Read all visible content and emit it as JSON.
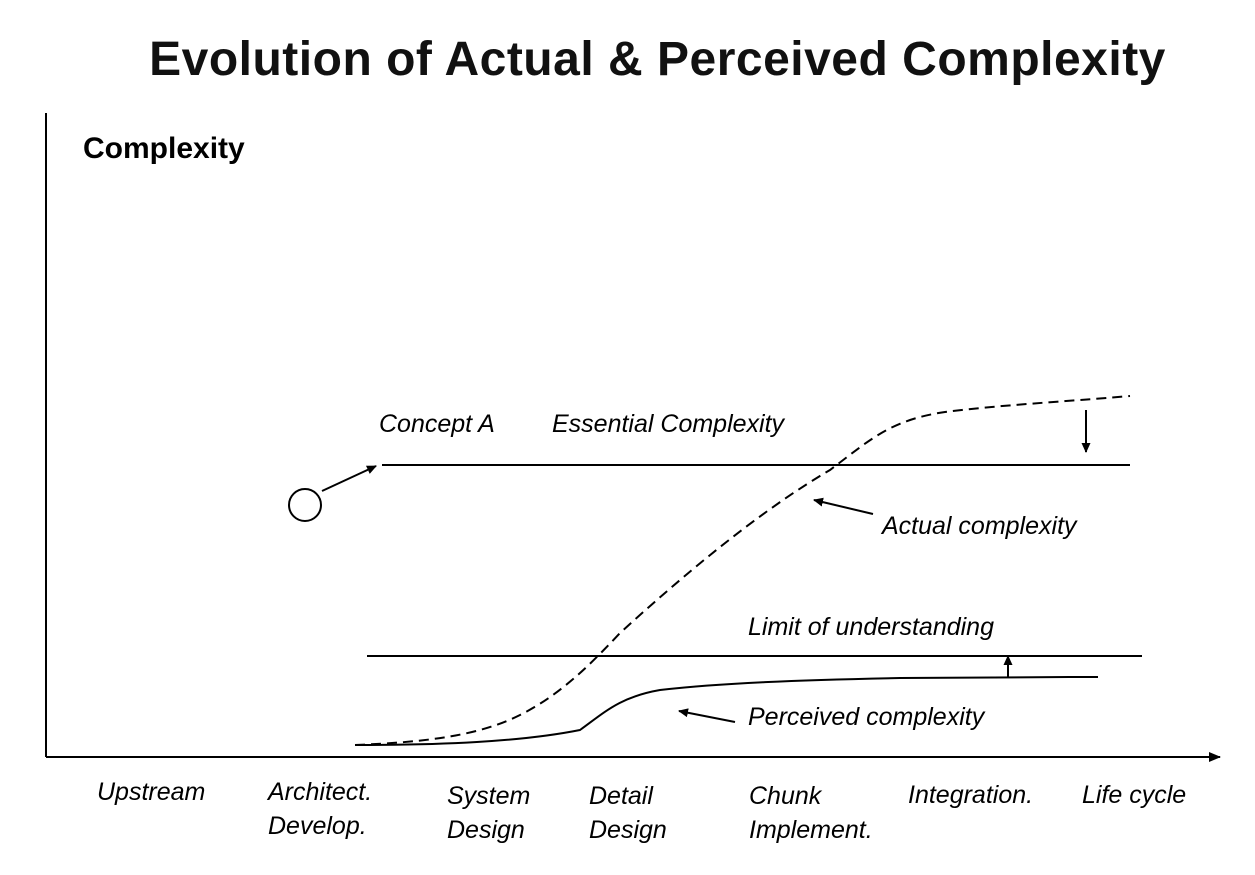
{
  "title": "Evolution of Actual & Perceived Complexity",
  "y_axis_label": "Complexity",
  "annotations": {
    "concept": "Concept A",
    "essential": "Essential Complexity",
    "actual": "Actual complexity",
    "limit": "Limit of understanding",
    "perceived": "Perceived complexity"
  },
  "stages": [
    {
      "line1": "Upstream",
      "line2": ""
    },
    {
      "line1": "Architect.",
      "line2": "Develop."
    },
    {
      "line1": "System",
      "line2": "Design"
    },
    {
      "line1": "Detail",
      "line2": "Design"
    },
    {
      "line1": "Chunk",
      "line2": "Implement."
    },
    {
      "line1": "Integration.",
      "line2": ""
    },
    {
      "line1": "Life cycle",
      "line2": ""
    }
  ]
}
